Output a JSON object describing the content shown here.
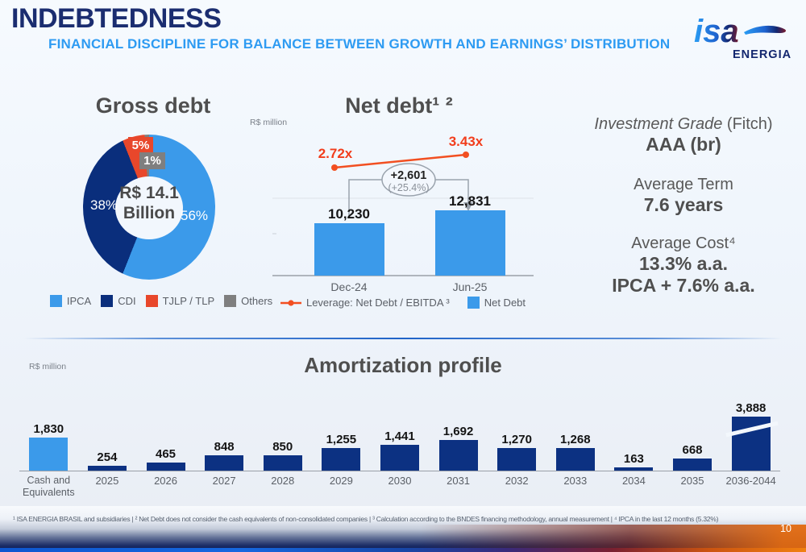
{
  "slide": {
    "page_number": "10"
  },
  "header": {
    "title": "INDEBTEDNESS",
    "subtitle": "FINANCIAL DISCIPLINE FOR BALANCE BETWEEN GROWTH AND EARNINGS’ DISTRIBUTION"
  },
  "logo": {
    "brand": "isa",
    "name": "ENERGIA"
  },
  "highlights": {
    "rating_label_italic": "Investment Grade",
    "rating_label_rest": " (Fitch)",
    "rating_value": "AAA (br)",
    "term_label": "Average Term",
    "term_value": "7.6 years",
    "cost_label": "Average Cost⁴",
    "cost_value1": "13.3% a.a.",
    "cost_value2": "IPCA + 7.6% a.a."
  },
  "footnote": "¹ ISA ENERGIA BRASIL and subsidiaries | ² Net Debt does not consider the cash equivalents of non-consolidated companies | ³ Calculation according to the BNDES financing methodology, annual measurement | ⁴ IPCA in the last 12 months (5.32%)",
  "chart_data": [
    {
      "type": "pie",
      "subtype": "donut",
      "title": "Gross debt",
      "center_line1": "R$ 14.1",
      "center_line2": "Billion",
      "legend_position": "bottom",
      "segments": [
        {
          "label": "IPCA",
          "value_pct": 56,
          "pct_label": "56%",
          "color": "#3B9AEA"
        },
        {
          "label": "CDI",
          "value_pct": 38,
          "pct_label": "38%",
          "color": "#0A2E7C"
        },
        {
          "label": "TJLP / TLP",
          "value_pct": 5,
          "pct_label": "5%",
          "color": "#E8472B"
        },
        {
          "label": "Others",
          "value_pct": 1,
          "pct_label": "1%",
          "color": "#7F7F7F"
        }
      ]
    },
    {
      "type": "bar",
      "title": "Net debt¹ ²",
      "unit_label": "R$ million",
      "categories": [
        "Dec-24",
        "Jun-25"
      ],
      "series": [
        {
          "name": "Net Debt",
          "values": [
            10230,
            12831
          ],
          "value_labels": [
            "10,230",
            "12,831"
          ],
          "color": "#3B9AEA"
        }
      ],
      "leverage": {
        "name": "Leverage: Net Debt / EBITDA ³",
        "values": [
          2.72,
          3.43
        ],
        "labels": [
          "2.72x",
          "3.43x"
        ],
        "color": "#F24F21"
      },
      "annotation": {
        "delta": "+2,601",
        "delta_pct": "(+25.4%)"
      },
      "legend_position": "bottom"
    },
    {
      "type": "bar",
      "title": "Amortization profile",
      "unit_label": "R$ million",
      "axis_break_note": "last bar truncated with break mark",
      "bars": [
        {
          "category": "Cash and\nEquivalents",
          "value": 1830,
          "value_label": "1,830",
          "color": "#3B9AEA"
        },
        {
          "category": "2025",
          "value": 254,
          "value_label": "254",
          "color": "#0C3182"
        },
        {
          "category": "2026",
          "value": 465,
          "value_label": "465",
          "color": "#0C3182"
        },
        {
          "category": "2027",
          "value": 848,
          "value_label": "848",
          "color": "#0C3182"
        },
        {
          "category": "2028",
          "value": 850,
          "value_label": "850",
          "color": "#0C3182"
        },
        {
          "category": "2029",
          "value": 1255,
          "value_label": "1,255",
          "color": "#0C3182"
        },
        {
          "category": "2030",
          "value": 1441,
          "value_label": "1,441",
          "color": "#0C3182"
        },
        {
          "category": "2031",
          "value": 1692,
          "value_label": "1,692",
          "color": "#0C3182"
        },
        {
          "category": "2032",
          "value": 1270,
          "value_label": "1,270",
          "color": "#0C3182"
        },
        {
          "category": "2033",
          "value": 1268,
          "value_label": "1,268",
          "color": "#0C3182"
        },
        {
          "category": "2034",
          "value": 163,
          "value_label": "163",
          "color": "#0C3182"
        },
        {
          "category": "2035",
          "value": 668,
          "value_label": "668",
          "color": "#0C3182"
        },
        {
          "category": "2036-2044",
          "value": 3888,
          "value_label": "3,888",
          "color": "#0C3182",
          "axis_break": true
        }
      ]
    }
  ]
}
